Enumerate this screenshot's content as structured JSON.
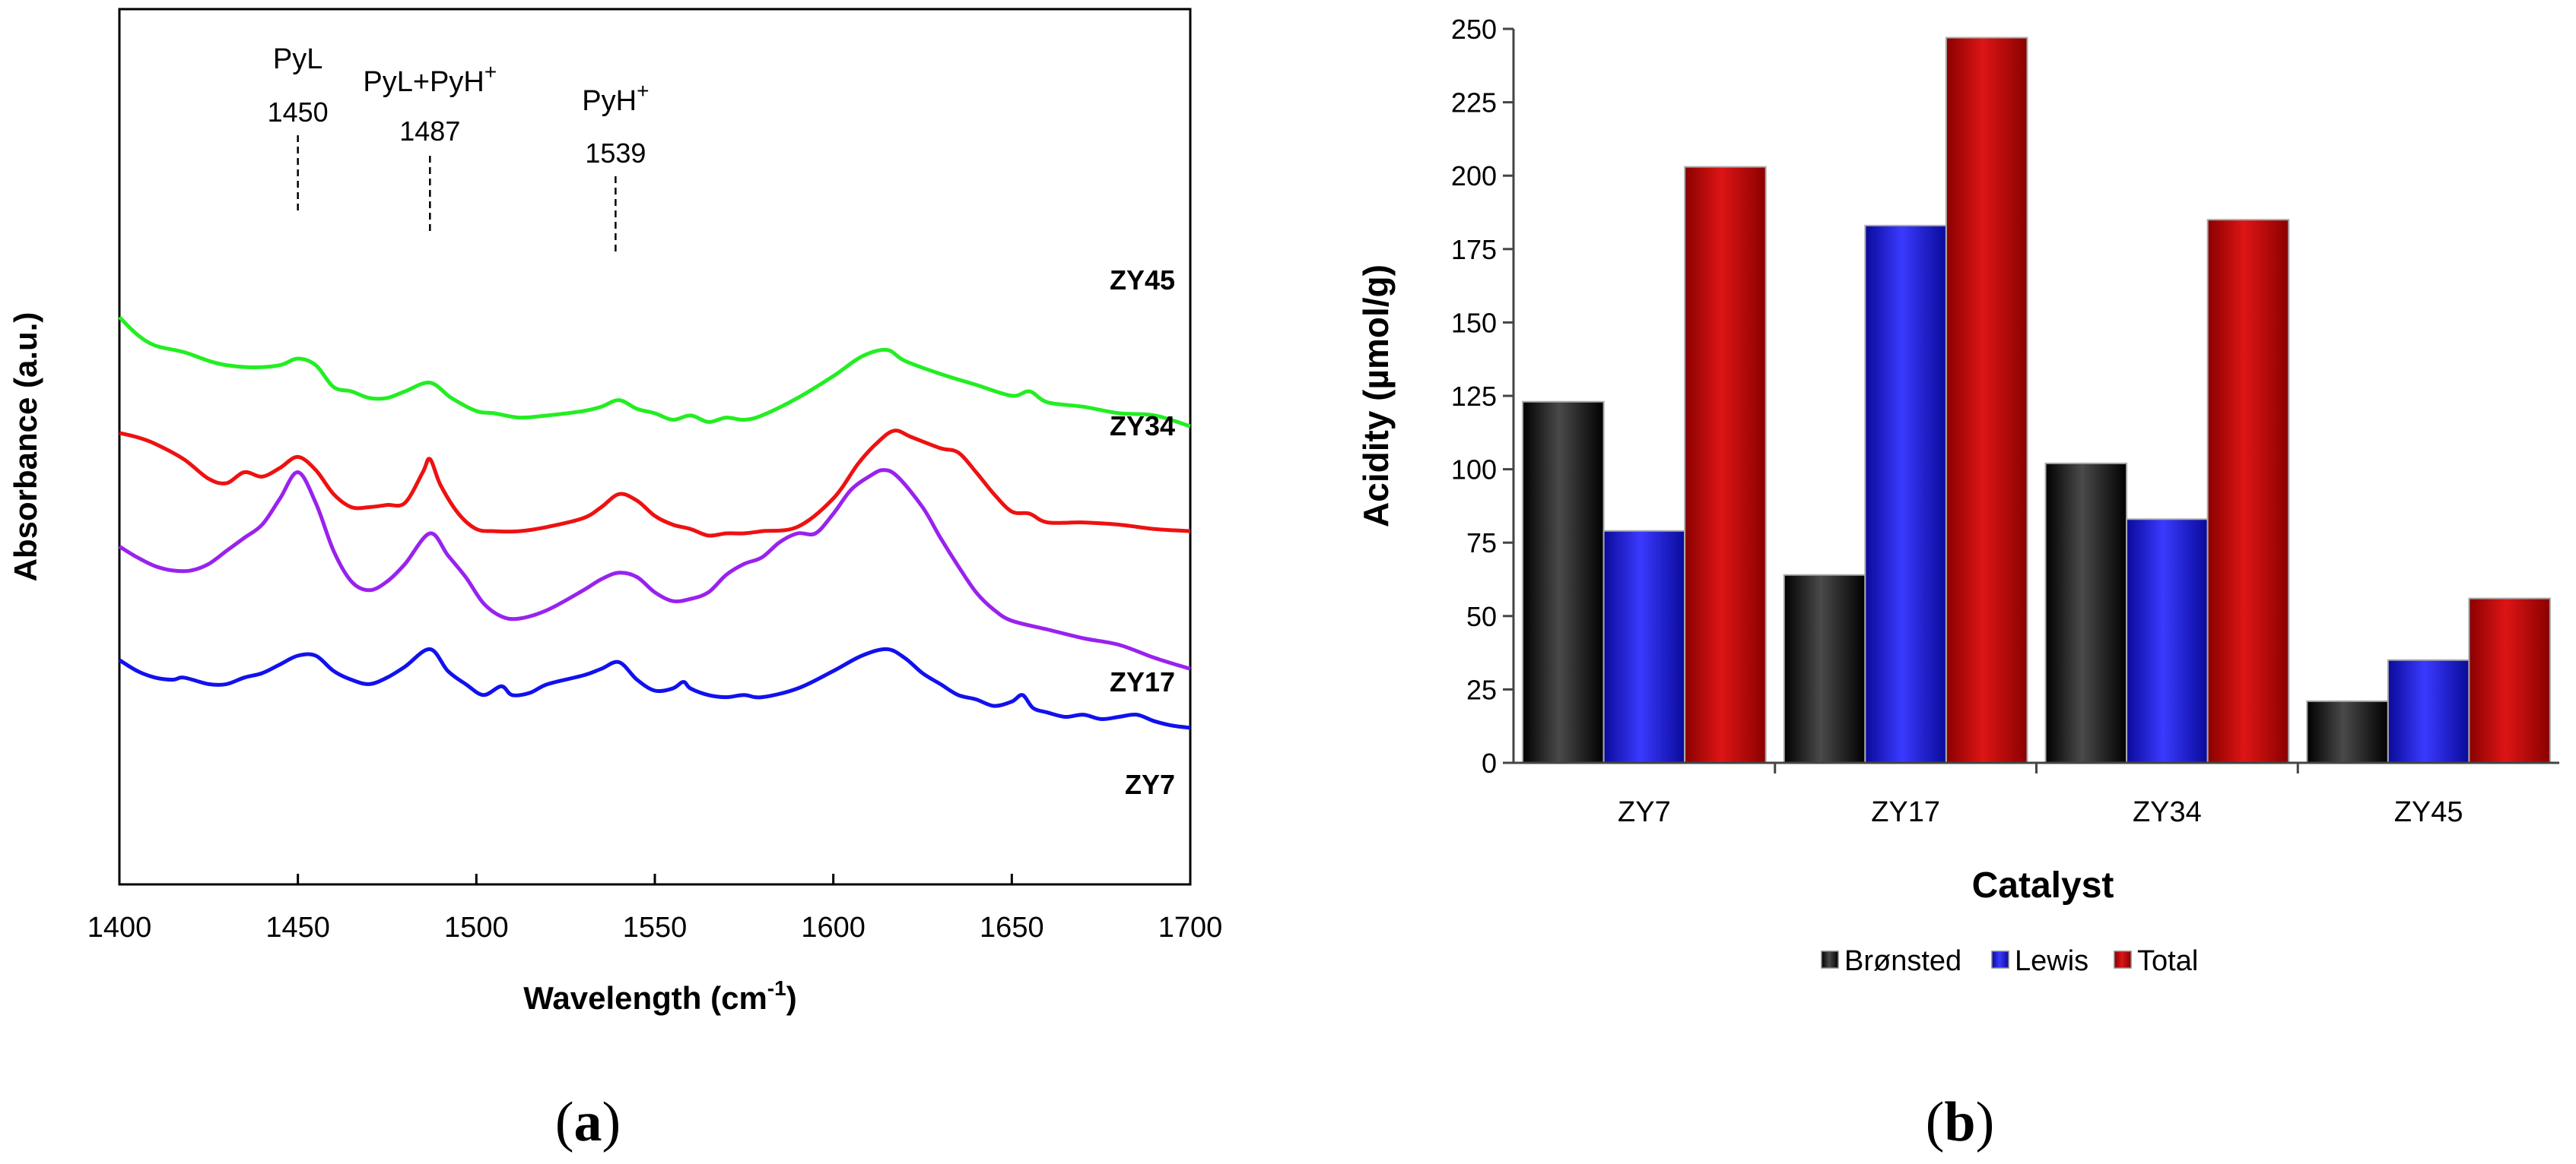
{
  "chart_data": [
    {
      "type": "line",
      "panel_label": "a",
      "xlabel": "Wavelength (cm",
      "xlabel_sup": "-1",
      "xlabel_close": ")",
      "ylabel": "Absorbance (a.u.)",
      "xlim": [
        1400,
        1700
      ],
      "xticks": [
        1400,
        1450,
        1500,
        1550,
        1600,
        1650,
        1700
      ],
      "xtick_labels": [
        "1400",
        "1450",
        "1500",
        "1550",
        "1600",
        "1650",
        "1700"
      ],
      "annotations": [
        {
          "x": 1450,
          "name": "PyL",
          "sup": "",
          "value": "1450"
        },
        {
          "x": 1487,
          "name": "PyL+PyH",
          "sup": "+",
          "value": "1487"
        },
        {
          "x": 1539,
          "name": "PyH",
          "sup": "+",
          "value": "1539"
        }
      ],
      "series": [
        {
          "name": "ZY45",
          "color": "#22ee22",
          "x": [
            1400,
            1405,
            1410,
            1418,
            1425,
            1430,
            1438,
            1445,
            1450,
            1455,
            1460,
            1465,
            1470,
            1475,
            1480,
            1487,
            1493,
            1500,
            1505,
            1512,
            1520,
            1530,
            1535,
            1540,
            1545,
            1550,
            1555,
            1560,
            1565,
            1570,
            1575,
            1580,
            1590,
            1600,
            1608,
            1615,
            1620,
            1630,
            1640,
            1650,
            1655,
            1660,
            1670,
            1680,
            1690,
            1700
          ],
          "y": [
            4.95,
            4.55,
            4.3,
            4.15,
            3.95,
            3.85,
            3.8,
            3.85,
            4.0,
            3.85,
            3.35,
            3.25,
            3.1,
            3.1,
            3.25,
            3.45,
            3.1,
            2.8,
            2.75,
            2.65,
            2.7,
            2.8,
            2.9,
            3.05,
            2.85,
            2.75,
            2.6,
            2.7,
            2.55,
            2.65,
            2.6,
            2.7,
            3.1,
            3.6,
            4.05,
            4.2,
            3.95,
            3.65,
            3.4,
            3.15,
            3.25,
            3.0,
            2.9,
            2.75,
            2.7,
            2.45
          ]
        },
        {
          "name": "ZY34",
          "color": "#ee1111",
          "x": [
            1400,
            1405,
            1410,
            1418,
            1425,
            1430,
            1435,
            1440,
            1445,
            1450,
            1455,
            1460,
            1465,
            1470,
            1475,
            1480,
            1485,
            1487,
            1490,
            1495,
            1500,
            1505,
            1512,
            1520,
            1530,
            1535,
            1540,
            1545,
            1550,
            1555,
            1560,
            1565,
            1570,
            1575,
            1580,
            1590,
            1600,
            1607,
            1612,
            1617,
            1622,
            1630,
            1635,
            1640,
            1645,
            1650,
            1655,
            1660,
            1670,
            1680,
            1690,
            1700
          ],
          "y": [
            2.3,
            2.2,
            2.05,
            1.7,
            1.25,
            1.15,
            1.4,
            1.3,
            1.5,
            1.75,
            1.45,
            0.9,
            0.6,
            0.6,
            0.65,
            0.7,
            1.4,
            1.7,
            1.1,
            0.45,
            0.1,
            0.05,
            0.05,
            0.15,
            0.35,
            0.6,
            0.9,
            0.75,
            0.4,
            0.2,
            0.1,
            -0.05,
            0.0,
            0.0,
            0.05,
            0.15,
            0.8,
            1.6,
            2.05,
            2.35,
            2.2,
            1.95,
            1.85,
            1.4,
            0.9,
            0.5,
            0.45,
            0.25,
            0.25,
            0.2,
            0.1,
            0.05
          ]
        },
        {
          "name": "ZY17",
          "color": "#9922ee",
          "x": [
            1400,
            1405,
            1410,
            1415,
            1420,
            1425,
            1430,
            1435,
            1440,
            1445,
            1450,
            1455,
            1460,
            1465,
            1470,
            1475,
            1480,
            1487,
            1492,
            1497,
            1502,
            1507,
            1512,
            1520,
            1530,
            1535,
            1540,
            1545,
            1550,
            1555,
            1560,
            1565,
            1570,
            1575,
            1580,
            1585,
            1590,
            1595,
            1600,
            1605,
            1610,
            1614,
            1618,
            1625,
            1630,
            1635,
            1640,
            1645,
            1650,
            1660,
            1670,
            1680,
            1690,
            1700
          ],
          "y": [
            -0.3,
            -0.55,
            -0.75,
            -0.85,
            -0.85,
            -0.7,
            -0.4,
            -0.1,
            0.2,
            0.8,
            1.4,
            0.7,
            -0.4,
            -1.1,
            -1.3,
            -1.1,
            -0.7,
            0.0,
            -0.5,
            -1.0,
            -1.6,
            -1.9,
            -1.95,
            -1.75,
            -1.3,
            -1.05,
            -0.9,
            -1.0,
            -1.35,
            -1.55,
            -1.5,
            -1.35,
            -0.95,
            -0.7,
            -0.55,
            -0.2,
            0.0,
            0.0,
            0.45,
            1.0,
            1.3,
            1.45,
            1.3,
            0.6,
            -0.1,
            -0.75,
            -1.35,
            -1.75,
            -2.0,
            -2.2,
            -2.4,
            -2.55,
            -2.85,
            -3.1
          ]
        },
        {
          "name": "ZY7",
          "color": "#1111ee",
          "x": [
            1400,
            1405,
            1410,
            1415,
            1418,
            1425,
            1430,
            1435,
            1440,
            1445,
            1450,
            1455,
            1460,
            1465,
            1470,
            1475,
            1480,
            1487,
            1492,
            1497,
            1502,
            1507,
            1510,
            1515,
            1520,
            1530,
            1535,
            1540,
            1545,
            1550,
            1555,
            1558,
            1560,
            1565,
            1570,
            1575,
            1580,
            1590,
            1600,
            1608,
            1615,
            1620,
            1625,
            1630,
            1635,
            1640,
            1645,
            1650,
            1653,
            1656,
            1660,
            1665,
            1670,
            1675,
            1680,
            1685,
            1690,
            1695,
            1700
          ],
          "y": [
            -2.9,
            -3.15,
            -3.3,
            -3.35,
            -3.3,
            -3.45,
            -3.45,
            -3.3,
            -3.2,
            -3.0,
            -2.8,
            -2.8,
            -3.15,
            -3.35,
            -3.45,
            -3.3,
            -3.05,
            -2.65,
            -3.15,
            -3.45,
            -3.7,
            -3.5,
            -3.7,
            -3.65,
            -3.45,
            -3.25,
            -3.1,
            -2.95,
            -3.35,
            -3.6,
            -3.55,
            -3.4,
            -3.55,
            -3.7,
            -3.75,
            -3.7,
            -3.75,
            -3.55,
            -3.15,
            -2.8,
            -2.65,
            -2.85,
            -3.2,
            -3.45,
            -3.7,
            -3.8,
            -3.95,
            -3.85,
            -3.7,
            -4.0,
            -4.1,
            -4.2,
            -4.15,
            -4.25,
            -4.2,
            -4.15,
            -4.3,
            -4.4,
            -4.45
          ]
        }
      ]
    },
    {
      "type": "bar",
      "panel_label": "b",
      "xlabel": "Catalyst",
      "ylabel": "Acidity (µmol/g)",
      "ylim": [
        0,
        250
      ],
      "yticks": [
        0,
        25,
        50,
        75,
        100,
        125,
        150,
        175,
        200,
        225,
        250
      ],
      "categories": [
        "ZY7",
        "ZY17",
        "ZY34",
        "ZY45"
      ],
      "series": [
        {
          "name": "Brønsted",
          "color": "#000000",
          "values": [
            123,
            64,
            102,
            21
          ]
        },
        {
          "name": "Lewis",
          "color": "#1515dd",
          "values": [
            79,
            183,
            83,
            35
          ]
        },
        {
          "name": "Total",
          "color": "#cc1111",
          "values": [
            203,
            247,
            185,
            56
          ]
        }
      ],
      "legend": "bottom"
    }
  ]
}
